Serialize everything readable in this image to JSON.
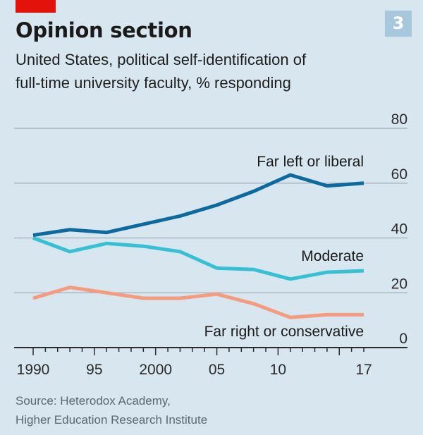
{
  "header": {
    "title": "Opinion section",
    "subtitle_line1": "United States, political self-identification of",
    "subtitle_line2": "full-time university faculty, % responding",
    "badge": "3"
  },
  "footer": {
    "source_line1": "Source: Heterodox Academy,",
    "source_line2": "Higher Education Research Institute"
  },
  "colors": {
    "background": "#d7e6ef",
    "brand_red": "#e3120b",
    "badge": "#a7c8dc",
    "gridline": "#a9b8c2",
    "axis": "#2a2a2a"
  },
  "chart_data": {
    "type": "line",
    "title": "Opinion section",
    "subtitle": "United States, political self-identification of full-time university faculty, % responding",
    "xlabel": "",
    "ylabel": "% responding",
    "x": [
      1990,
      1993,
      1996,
      1999,
      2002,
      2005,
      2008,
      2011,
      2014,
      2017
    ],
    "xlim": [
      1990,
      2017
    ],
    "ylim": [
      0,
      80
    ],
    "y_ticks": [
      0,
      20,
      40,
      60,
      80
    ],
    "y_tick_labels": [
      "0",
      "20",
      "40",
      "60",
      "80"
    ],
    "y_axis_side": "right",
    "x_major_ticks": [
      1990,
      1995,
      2000,
      2005,
      2010,
      2015
    ],
    "x_tick_labels": [
      {
        "year": 1990,
        "label": "1990"
      },
      {
        "year": 1995,
        "label": "95"
      },
      {
        "year": 2000,
        "label": "2000"
      },
      {
        "year": 2005,
        "label": "05"
      },
      {
        "year": 2010,
        "label": "10"
      },
      {
        "year": 2017,
        "label": "17"
      }
    ],
    "grid": true,
    "legend": "inline labels",
    "series": [
      {
        "name": "Far left or liberal",
        "color": "#0d6a9e",
        "values": [
          41,
          43,
          42,
          45,
          48,
          52,
          57,
          63,
          59,
          60
        ],
        "label_anchor": "above-right"
      },
      {
        "name": "Moderate",
        "color": "#37c0d4",
        "values": [
          40,
          35,
          38,
          37,
          35,
          29,
          28.5,
          25,
          27.5,
          28
        ],
        "label_anchor": "above-right"
      },
      {
        "name": "Far right or conservative",
        "color": "#f59c80",
        "values": [
          18,
          22,
          20,
          18,
          18,
          19.5,
          16,
          11,
          12,
          12
        ],
        "label_anchor": "below-right"
      }
    ]
  }
}
